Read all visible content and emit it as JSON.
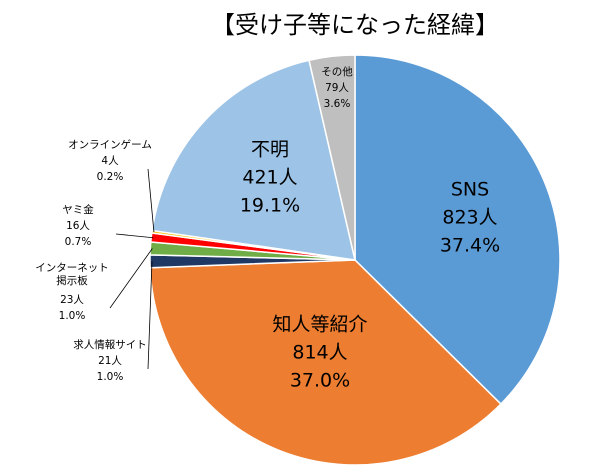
{
  "chart_data": {
    "type": "pie",
    "title": "【受け子等になった経緯】",
    "categories": [
      "SNS",
      "知人等紹介",
      "求人情報サイト",
      "インターネット\n掲示板",
      "ヤミ金",
      "オンラインゲーム",
      "不明",
      "その他"
    ],
    "values": [
      37.4,
      37.0,
      1.0,
      1.0,
      0.7,
      0.2,
      19.1,
      3.6
    ],
    "value_labels": [
      "37.4%",
      "37.0%",
      "1.0%",
      "1.0%",
      "0.7%",
      "0.2%",
      "19.1%",
      "3.6%"
    ],
    "counts": [
      823,
      814,
      21,
      23,
      16,
      4,
      421,
      79
    ],
    "count_labels": [
      "823人",
      "814人",
      "21人",
      "23人",
      "16人",
      "4人",
      "421人",
      "79人"
    ],
    "colors": [
      "#5b9bd5",
      "#ed7d31",
      "#1f3864",
      "#70ad47",
      "#ff0000",
      "#ffc000",
      "#9dc3e6",
      "#bfbfbf"
    ]
  }
}
